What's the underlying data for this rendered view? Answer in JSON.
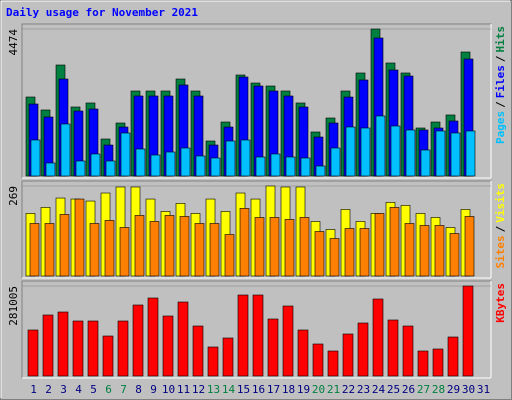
{
  "chart_data": [
    {
      "type": "bar",
      "title": "Daily usage for November 2021",
      "ylim": [
        0,
        4474
      ],
      "yticks": [
        4474
      ],
      "legend_separator": "/",
      "series": [
        {
          "name": "Hits",
          "color": "#008040",
          "values": [
            2404,
            2009,
            3378,
            2100,
            2222,
            1126,
            1613,
            2587,
            2587,
            2587,
            2952,
            2587,
            1065,
            1643,
            3074,
            2830,
            2739,
            2587,
            2222,
            1339,
            1765,
            2587,
            3135,
            4474,
            3439,
            3135,
            1461,
            1643,
            1857,
            3774,
            null
          ]
        },
        {
          "name": "Files",
          "color": "#0000ff",
          "values": [
            2191,
            1796,
            2952,
            1978,
            2039,
            943,
            1491,
            2435,
            2435,
            2435,
            2770,
            2435,
            943,
            1491,
            3013,
            2739,
            2587,
            2435,
            2100,
            1187,
            1613,
            2404,
            2922,
            4200,
            3226,
            3043,
            1400,
            1461,
            1674,
            3561,
            null
          ]
        },
        {
          "name": "Pages",
          "color": "#00c0ff",
          "values": [
            1096,
            396,
            1583,
            457,
            670,
            457,
            1309,
            822,
            639,
            730,
            852,
            609,
            548,
            1065,
            1096,
            578,
            670,
            578,
            548,
            304,
            852,
            1491,
            1461,
            1826,
            1522,
            1400,
            791,
            1370,
            1309,
            1370,
            null
          ]
        }
      ]
    },
    {
      "type": "bar",
      "ylim": [
        0,
        269
      ],
      "yticks": [
        269
      ],
      "legend_separator": "/",
      "series": [
        {
          "name": "Visits",
          "color": "#ffff00",
          "values": [
            187,
            205,
            233,
            230,
            224,
            248,
            266,
            266,
            230,
            193,
            217,
            187,
            230,
            193,
            248,
            230,
            269,
            266,
            266,
            163,
            139,
            199,
            163,
            187,
            220,
            211,
            187,
            175,
            145,
            199,
            null
          ]
        },
        {
          "name": "Sites",
          "color": "#ff8000",
          "values": [
            157,
            157,
            184,
            230,
            157,
            166,
            145,
            181,
            163,
            181,
            178,
            157,
            157,
            124,
            202,
            175,
            175,
            169,
            175,
            133,
            112,
            142,
            142,
            187,
            205,
            157,
            151,
            151,
            127,
            178,
            null
          ]
        }
      ]
    },
    {
      "type": "bar",
      "ylim": [
        0,
        281005
      ],
      "yticks": [
        281005
      ],
      "categories": [
        "1",
        "2",
        "3",
        "4",
        "5",
        "6",
        "7",
        "8",
        "9",
        "10",
        "11",
        "12",
        "13",
        "14",
        "15",
        "16",
        "17",
        "18",
        "19",
        "20",
        "21",
        "22",
        "23",
        "24",
        "25",
        "26",
        "27",
        "28",
        "29",
        "30",
        "31"
      ],
      "category_colors": [
        "#000080",
        "#000080",
        "#000080",
        "#000080",
        "#000080",
        "#008040",
        "#008040",
        "#000080",
        "#000080",
        "#000080",
        "#000080",
        "#000080",
        "#008040",
        "#008040",
        "#000080",
        "#000080",
        "#000080",
        "#000080",
        "#000080",
        "#008040",
        "#008040",
        "#000080",
        "#000080",
        "#000080",
        "#000080",
        "#000080",
        "#008040",
        "#008040",
        "#000080",
        "#000080",
        "#000080"
      ],
      "series": [
        {
          "name": "KBytes",
          "color": "#ff0000",
          "values": [
            143620,
            190450,
            199810,
            171720,
            171720,
            124890,
            171720,
            221670,
            243520,
            187330,
            231030,
            156100,
            90540,
            118640,
            252890,
            252890,
            177960,
            218550,
            143620,
            99910,
            78050,
            131130,
            165470,
            240400,
            174840,
            156100,
            78050,
            84300,
            121760,
            281005,
            null
          ]
        }
      ]
    }
  ]
}
